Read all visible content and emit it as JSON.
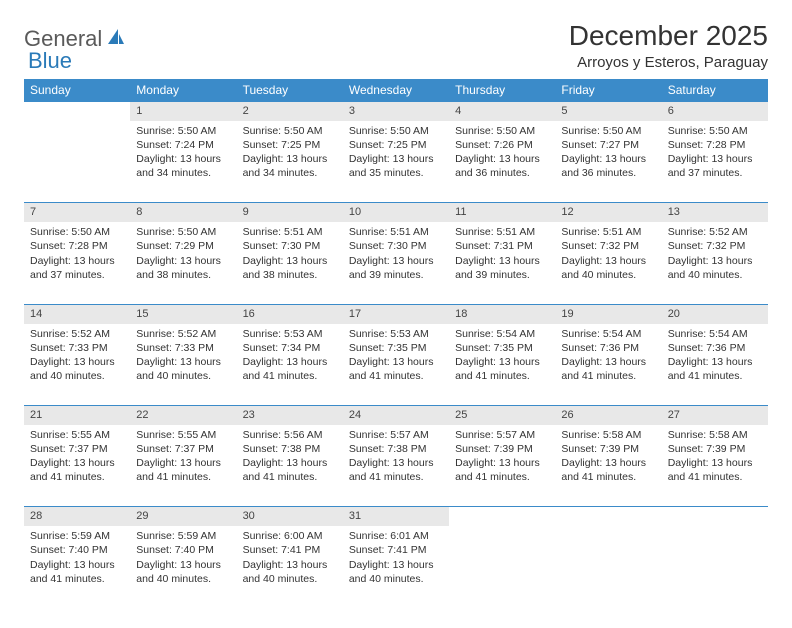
{
  "logo": {
    "part1": "General",
    "part2": "Blue"
  },
  "title": "December 2025",
  "location": "Arroyos y Esteros, Paraguay",
  "colors": {
    "header_bg": "#3b8bc9",
    "header_text": "#ffffff",
    "daynum_bg": "#e8e8e8",
    "border": "#3b8bc9",
    "logo_gray": "#5a5a5a",
    "logo_blue": "#2a7ab8"
  },
  "day_headers": [
    "Sunday",
    "Monday",
    "Tuesday",
    "Wednesday",
    "Thursday",
    "Friday",
    "Saturday"
  ],
  "weeks": [
    [
      null,
      {
        "n": "1",
        "sr": "Sunrise: 5:50 AM",
        "ss": "Sunset: 7:24 PM",
        "d1": "Daylight: 13 hours",
        "d2": "and 34 minutes."
      },
      {
        "n": "2",
        "sr": "Sunrise: 5:50 AM",
        "ss": "Sunset: 7:25 PM",
        "d1": "Daylight: 13 hours",
        "d2": "and 34 minutes."
      },
      {
        "n": "3",
        "sr": "Sunrise: 5:50 AM",
        "ss": "Sunset: 7:25 PM",
        "d1": "Daylight: 13 hours",
        "d2": "and 35 minutes."
      },
      {
        "n": "4",
        "sr": "Sunrise: 5:50 AM",
        "ss": "Sunset: 7:26 PM",
        "d1": "Daylight: 13 hours",
        "d2": "and 36 minutes."
      },
      {
        "n": "5",
        "sr": "Sunrise: 5:50 AM",
        "ss": "Sunset: 7:27 PM",
        "d1": "Daylight: 13 hours",
        "d2": "and 36 minutes."
      },
      {
        "n": "6",
        "sr": "Sunrise: 5:50 AM",
        "ss": "Sunset: 7:28 PM",
        "d1": "Daylight: 13 hours",
        "d2": "and 37 minutes."
      }
    ],
    [
      {
        "n": "7",
        "sr": "Sunrise: 5:50 AM",
        "ss": "Sunset: 7:28 PM",
        "d1": "Daylight: 13 hours",
        "d2": "and 37 minutes."
      },
      {
        "n": "8",
        "sr": "Sunrise: 5:50 AM",
        "ss": "Sunset: 7:29 PM",
        "d1": "Daylight: 13 hours",
        "d2": "and 38 minutes."
      },
      {
        "n": "9",
        "sr": "Sunrise: 5:51 AM",
        "ss": "Sunset: 7:30 PM",
        "d1": "Daylight: 13 hours",
        "d2": "and 38 minutes."
      },
      {
        "n": "10",
        "sr": "Sunrise: 5:51 AM",
        "ss": "Sunset: 7:30 PM",
        "d1": "Daylight: 13 hours",
        "d2": "and 39 minutes."
      },
      {
        "n": "11",
        "sr": "Sunrise: 5:51 AM",
        "ss": "Sunset: 7:31 PM",
        "d1": "Daylight: 13 hours",
        "d2": "and 39 minutes."
      },
      {
        "n": "12",
        "sr": "Sunrise: 5:51 AM",
        "ss": "Sunset: 7:32 PM",
        "d1": "Daylight: 13 hours",
        "d2": "and 40 minutes."
      },
      {
        "n": "13",
        "sr": "Sunrise: 5:52 AM",
        "ss": "Sunset: 7:32 PM",
        "d1": "Daylight: 13 hours",
        "d2": "and 40 minutes."
      }
    ],
    [
      {
        "n": "14",
        "sr": "Sunrise: 5:52 AM",
        "ss": "Sunset: 7:33 PM",
        "d1": "Daylight: 13 hours",
        "d2": "and 40 minutes."
      },
      {
        "n": "15",
        "sr": "Sunrise: 5:52 AM",
        "ss": "Sunset: 7:33 PM",
        "d1": "Daylight: 13 hours",
        "d2": "and 40 minutes."
      },
      {
        "n": "16",
        "sr": "Sunrise: 5:53 AM",
        "ss": "Sunset: 7:34 PM",
        "d1": "Daylight: 13 hours",
        "d2": "and 41 minutes."
      },
      {
        "n": "17",
        "sr": "Sunrise: 5:53 AM",
        "ss": "Sunset: 7:35 PM",
        "d1": "Daylight: 13 hours",
        "d2": "and 41 minutes."
      },
      {
        "n": "18",
        "sr": "Sunrise: 5:54 AM",
        "ss": "Sunset: 7:35 PM",
        "d1": "Daylight: 13 hours",
        "d2": "and 41 minutes."
      },
      {
        "n": "19",
        "sr": "Sunrise: 5:54 AM",
        "ss": "Sunset: 7:36 PM",
        "d1": "Daylight: 13 hours",
        "d2": "and 41 minutes."
      },
      {
        "n": "20",
        "sr": "Sunrise: 5:54 AM",
        "ss": "Sunset: 7:36 PM",
        "d1": "Daylight: 13 hours",
        "d2": "and 41 minutes."
      }
    ],
    [
      {
        "n": "21",
        "sr": "Sunrise: 5:55 AM",
        "ss": "Sunset: 7:37 PM",
        "d1": "Daylight: 13 hours",
        "d2": "and 41 minutes."
      },
      {
        "n": "22",
        "sr": "Sunrise: 5:55 AM",
        "ss": "Sunset: 7:37 PM",
        "d1": "Daylight: 13 hours",
        "d2": "and 41 minutes."
      },
      {
        "n": "23",
        "sr": "Sunrise: 5:56 AM",
        "ss": "Sunset: 7:38 PM",
        "d1": "Daylight: 13 hours",
        "d2": "and 41 minutes."
      },
      {
        "n": "24",
        "sr": "Sunrise: 5:57 AM",
        "ss": "Sunset: 7:38 PM",
        "d1": "Daylight: 13 hours",
        "d2": "and 41 minutes."
      },
      {
        "n": "25",
        "sr": "Sunrise: 5:57 AM",
        "ss": "Sunset: 7:39 PM",
        "d1": "Daylight: 13 hours",
        "d2": "and 41 minutes."
      },
      {
        "n": "26",
        "sr": "Sunrise: 5:58 AM",
        "ss": "Sunset: 7:39 PM",
        "d1": "Daylight: 13 hours",
        "d2": "and 41 minutes."
      },
      {
        "n": "27",
        "sr": "Sunrise: 5:58 AM",
        "ss": "Sunset: 7:39 PM",
        "d1": "Daylight: 13 hours",
        "d2": "and 41 minutes."
      }
    ],
    [
      {
        "n": "28",
        "sr": "Sunrise: 5:59 AM",
        "ss": "Sunset: 7:40 PM",
        "d1": "Daylight: 13 hours",
        "d2": "and 41 minutes."
      },
      {
        "n": "29",
        "sr": "Sunrise: 5:59 AM",
        "ss": "Sunset: 7:40 PM",
        "d1": "Daylight: 13 hours",
        "d2": "and 40 minutes."
      },
      {
        "n": "30",
        "sr": "Sunrise: 6:00 AM",
        "ss": "Sunset: 7:41 PM",
        "d1": "Daylight: 13 hours",
        "d2": "and 40 minutes."
      },
      {
        "n": "31",
        "sr": "Sunrise: 6:01 AM",
        "ss": "Sunset: 7:41 PM",
        "d1": "Daylight: 13 hours",
        "d2": "and 40 minutes."
      },
      null,
      null,
      null
    ]
  ]
}
